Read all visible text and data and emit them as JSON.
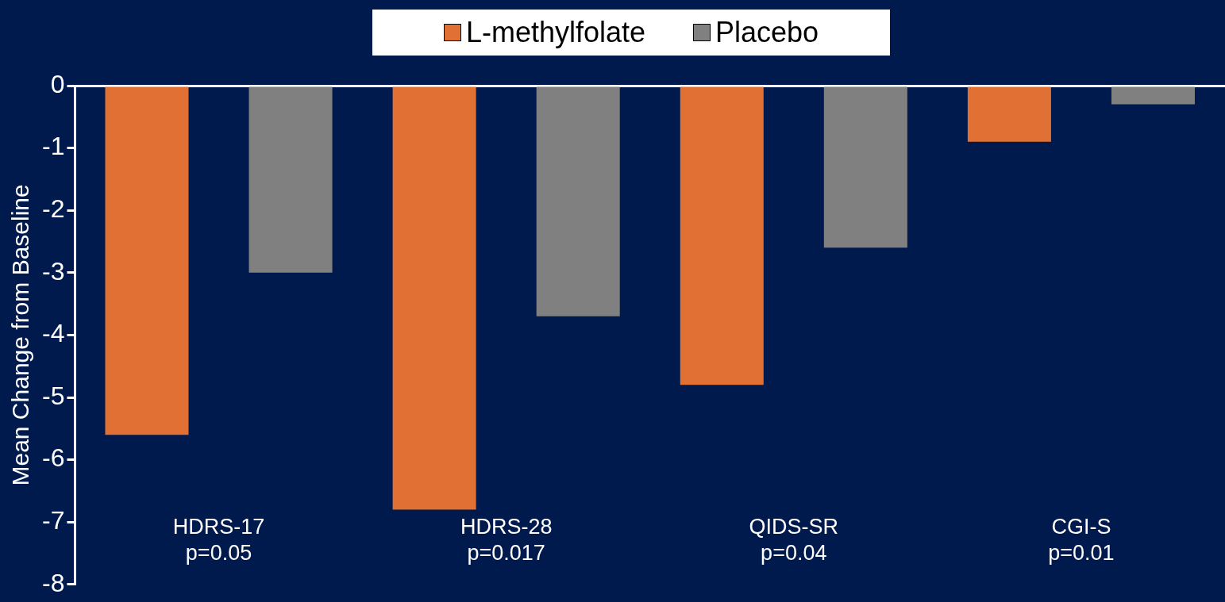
{
  "chart_data": {
    "type": "bar",
    "ylabel": "Mean Change from Baseline",
    "categories": [
      "HDRS-17\np=0.05",
      "HDRS-28\np=0.017",
      "QIDS-SR\np=0.04",
      "CGI-S\np=0.01"
    ],
    "series": [
      {
        "name": "L-methylfolate",
        "color": "#e07033",
        "values": [
          -5.6,
          -6.8,
          -4.8,
          -0.9
        ]
      },
      {
        "name": "Placebo",
        "color": "#808080",
        "values": [
          -3.0,
          -3.7,
          -2.6,
          -0.3
        ]
      }
    ],
    "ylim": [
      -8,
      0
    ],
    "yticks": [
      -8,
      -7,
      -6,
      -5,
      -4,
      -3,
      -2,
      -1,
      0
    ],
    "legend": "top",
    "grid": false
  }
}
